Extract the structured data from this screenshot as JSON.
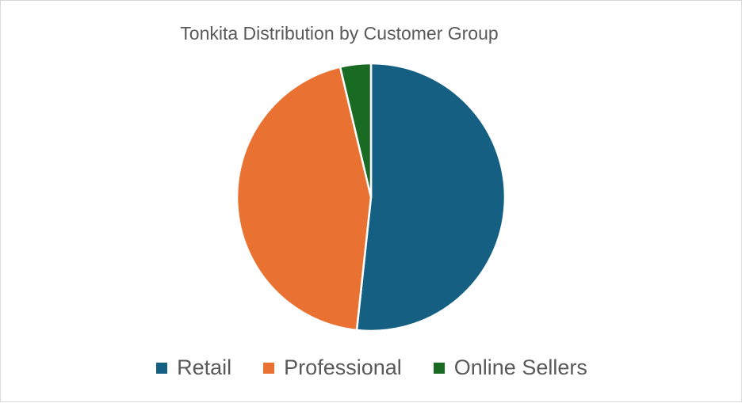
{
  "chart_data": {
    "type": "pie",
    "title": "Tonkita Distribution by Customer Group",
    "categories": [
      "Retail",
      "Professional",
      "Online Sellers"
    ],
    "values": [
      51.7,
      44.6,
      3.7
    ],
    "colors": [
      "#156082",
      "#E97132",
      "#196B24"
    ],
    "start_angle": "top, clockwise",
    "legend_position": "bottom"
  }
}
